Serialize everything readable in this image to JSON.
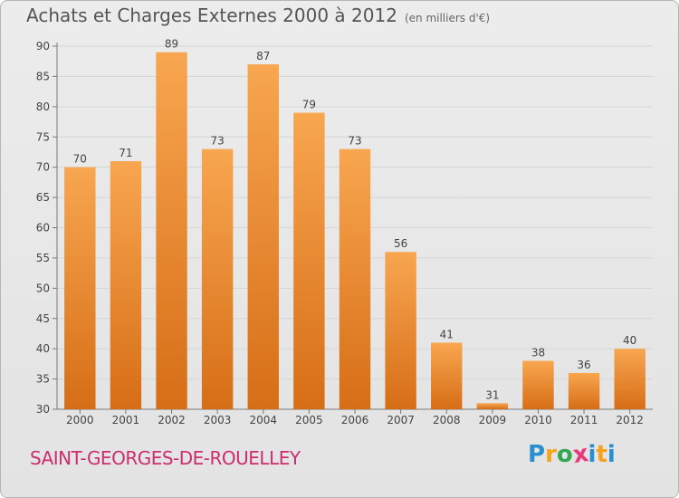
{
  "header": {
    "title": "Achats et Charges Externes 2000 à 2012",
    "unit": "(en milliers d'€)"
  },
  "footer": {
    "place": "SAINT-GEORGES-DE-ROUELLEY"
  },
  "logo": {
    "text": "Proxiti",
    "letters": [
      "P",
      "r",
      "o",
      "x",
      "i",
      "t",
      "i"
    ],
    "colors": [
      "#2a8fd1",
      "#f5a31a",
      "#33a852",
      "#e8397a",
      "#2a8fd1",
      "#f5a31a",
      "#2a8fd1"
    ]
  },
  "chart_data": {
    "type": "bar",
    "title": "Achats et Charges Externes 2000 à 2012",
    "xlabel": "",
    "ylabel": "",
    "categories": [
      "2000",
      "2001",
      "2002",
      "2003",
      "2004",
      "2005",
      "2006",
      "2007",
      "2008",
      "2009",
      "2010",
      "2011",
      "2012"
    ],
    "values": [
      70,
      71,
      89,
      73,
      87,
      79,
      73,
      56,
      41,
      31,
      38,
      36,
      40
    ],
    "ylim": [
      30,
      90
    ],
    "yticks": [
      30,
      35,
      40,
      45,
      50,
      55,
      60,
      65,
      70,
      75,
      80,
      85,
      90
    ],
    "grid": true,
    "colors": {
      "bar_top": "#f8a650",
      "bar_bottom": "#d66e16",
      "grid": "#d6d6d6",
      "axis": "#777777",
      "text": "#444444"
    }
  }
}
